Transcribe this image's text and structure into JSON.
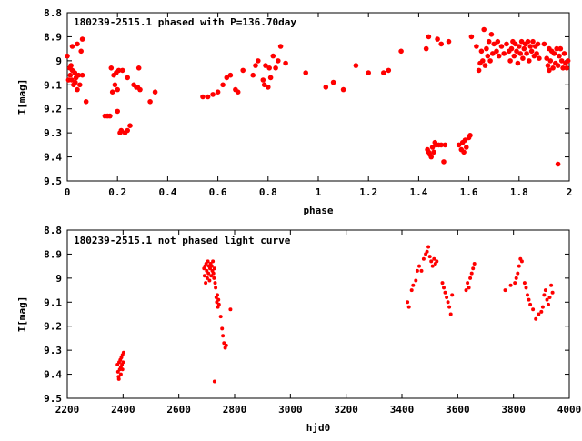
{
  "chart_data": [
    {
      "type": "scatter",
      "title": "180239-2515.1 phased with P=136.70day",
      "xlabel": "phase",
      "ylabel": "I[mag]",
      "xlim": [
        0,
        2
      ],
      "ylim": [
        9.5,
        8.8
      ],
      "y_inverted": true,
      "grid": false,
      "legend": "none",
      "marker_color": "#ff0000",
      "xticks": [
        "0",
        "0.2",
        "0.4",
        "0.6",
        "0.8",
        "1",
        "1.2",
        "1.4",
        "1.6",
        "1.8",
        "2"
      ],
      "xtick_values": [
        0,
        0.2,
        0.4,
        0.6,
        0.8,
        1,
        1.2,
        1.4,
        1.6,
        1.8,
        2
      ],
      "yticks": [
        "8.8",
        "8.9",
        "9",
        "9.1",
        "9.2",
        "9.3",
        "9.4",
        "9.5"
      ],
      "ytick_values": [
        8.8,
        8.9,
        9,
        9.1,
        9.2,
        9.3,
        9.4,
        9.5
      ],
      "points": [
        [
          0.0,
          8.98
        ],
        [
          0.005,
          9.08
        ],
        [
          0.01,
          9.03
        ],
        [
          0.012,
          9.06
        ],
        [
          0.015,
          9.02
        ],
        [
          0.018,
          9.08
        ],
        [
          0.02,
          9.04
        ],
        [
          0.025,
          9.1
        ],
        [
          0.03,
          9.05
        ],
        [
          0.032,
          9.09
        ],
        [
          0.035,
          9.07
        ],
        [
          0.04,
          9.12
        ],
        [
          0.045,
          9.06
        ],
        [
          0.05,
          9.1
        ],
        [
          0.055,
          8.96
        ],
        [
          0.06,
          9.06
        ],
        [
          0.02,
          8.94
        ],
        [
          0.04,
          8.93
        ],
        [
          0.06,
          8.91
        ],
        [
          0.075,
          9.17
        ],
        [
          0.15,
          9.23
        ],
        [
          0.16,
          9.23
        ],
        [
          0.17,
          9.23
        ],
        [
          0.175,
          9.03
        ],
        [
          0.18,
          9.13
        ],
        [
          0.185,
          9.06
        ],
        [
          0.19,
          9.1
        ],
        [
          0.195,
          9.05
        ],
        [
          0.2,
          9.12
        ],
        [
          0.2,
          9.21
        ],
        [
          0.205,
          9.04
        ],
        [
          0.21,
          9.3
        ],
        [
          0.215,
          9.29
        ],
        [
          0.22,
          9.04
        ],
        [
          0.23,
          9.3
        ],
        [
          0.24,
          9.29
        ],
        [
          0.24,
          9.07
        ],
        [
          0.25,
          9.27
        ],
        [
          0.265,
          9.1
        ],
        [
          0.275,
          9.11
        ],
        [
          0.28,
          9.11
        ],
        [
          0.285,
          9.03
        ],
        [
          0.29,
          9.12
        ],
        [
          0.33,
          9.17
        ],
        [
          0.35,
          9.13
        ],
        [
          0.54,
          9.15
        ],
        [
          0.56,
          9.15
        ],
        [
          0.58,
          9.14
        ],
        [
          0.6,
          9.13
        ],
        [
          0.62,
          9.1
        ],
        [
          0.635,
          9.07
        ],
        [
          0.65,
          9.06
        ],
        [
          0.67,
          9.12
        ],
        [
          0.68,
          9.13
        ],
        [
          0.7,
          9.04
        ],
        [
          0.74,
          9.06
        ],
        [
          0.75,
          9.02
        ],
        [
          0.76,
          9.0
        ],
        [
          0.78,
          9.08
        ],
        [
          0.785,
          9.1
        ],
        [
          0.79,
          9.02
        ],
        [
          0.8,
          9.11
        ],
        [
          0.805,
          9.03
        ],
        [
          0.81,
          9.07
        ],
        [
          0.82,
          8.98
        ],
        [
          0.83,
          9.03
        ],
        [
          0.84,
          9.0
        ],
        [
          0.85,
          8.94
        ],
        [
          0.87,
          9.01
        ],
        [
          0.95,
          9.05
        ],
        [
          1.03,
          9.11
        ],
        [
          1.06,
          9.09
        ],
        [
          1.1,
          9.12
        ],
        [
          1.15,
          9.02
        ],
        [
          1.2,
          9.05
        ],
        [
          1.26,
          9.05
        ],
        [
          1.28,
          9.04
        ],
        [
          1.33,
          8.96
        ],
        [
          1.43,
          8.95
        ],
        [
          1.44,
          8.9
        ],
        [
          1.435,
          9.37
        ],
        [
          1.44,
          9.38
        ],
        [
          1.445,
          9.39
        ],
        [
          1.45,
          9.4
        ],
        [
          1.455,
          9.36
        ],
        [
          1.46,
          9.38
        ],
        [
          1.465,
          9.34
        ],
        [
          1.47,
          9.35
        ],
        [
          1.475,
          8.91
        ],
        [
          1.48,
          9.35
        ],
        [
          1.49,
          9.35
        ],
        [
          1.49,
          8.93
        ],
        [
          1.5,
          9.42
        ],
        [
          1.505,
          9.35
        ],
        [
          1.52,
          8.92
        ],
        [
          1.56,
          9.35
        ],
        [
          1.57,
          9.37
        ],
        [
          1.575,
          9.34
        ],
        [
          1.58,
          9.38
        ],
        [
          1.585,
          9.33
        ],
        [
          1.59,
          9.36
        ],
        [
          1.6,
          9.32
        ],
        [
          1.605,
          9.31
        ],
        [
          1.61,
          8.9
        ],
        [
          1.63,
          8.94
        ],
        [
          1.64,
          9.04
        ],
        [
          1.645,
          9.01
        ],
        [
          1.65,
          8.96
        ],
        [
          1.655,
          9.0
        ],
        [
          1.66,
          8.87
        ],
        [
          1.665,
          9.02
        ],
        [
          1.67,
          8.95
        ],
        [
          1.675,
          8.98
        ],
        [
          1.68,
          8.92
        ],
        [
          1.685,
          9.0
        ],
        [
          1.69,
          8.89
        ],
        [
          1.695,
          8.97
        ],
        [
          1.7,
          8.93
        ],
        [
          1.71,
          8.96
        ],
        [
          1.715,
          8.92
        ],
        [
          1.72,
          8.98
        ],
        [
          1.73,
          8.94
        ],
        [
          1.74,
          8.97
        ],
        [
          1.75,
          8.93
        ],
        [
          1.76,
          8.96
        ],
        [
          1.765,
          9.0
        ],
        [
          1.77,
          8.95
        ],
        [
          1.775,
          8.92
        ],
        [
          1.78,
          8.98
        ],
        [
          1.785,
          8.93
        ],
        [
          1.79,
          8.96
        ],
        [
          1.795,
          9.01
        ],
        [
          1.8,
          8.94
        ],
        [
          1.805,
          8.97
        ],
        [
          1.81,
          8.92
        ],
        [
          1.815,
          8.99
        ],
        [
          1.82,
          8.95
        ],
        [
          1.825,
          8.93
        ],
        [
          1.83,
          8.97
        ],
        [
          1.835,
          8.92
        ],
        [
          1.84,
          9.0
        ],
        [
          1.845,
          8.94
        ],
        [
          1.85,
          8.96
        ],
        [
          1.855,
          8.92
        ],
        [
          1.86,
          8.98
        ],
        [
          1.865,
          8.94
        ],
        [
          1.87,
          8.97
        ],
        [
          1.875,
          8.93
        ],
        [
          1.88,
          8.99
        ],
        [
          1.9,
          8.93
        ],
        [
          1.91,
          8.99
        ],
        [
          1.915,
          9.02
        ],
        [
          1.92,
          8.95
        ],
        [
          1.925,
          9.0
        ],
        [
          1.93,
          8.96
        ],
        [
          1.935,
          9.03
        ],
        [
          1.94,
          8.97
        ],
        [
          1.945,
          9.01
        ],
        [
          1.95,
          8.95
        ],
        [
          1.955,
          9.02
        ],
        [
          1.96,
          8.98
        ],
        [
          1.965,
          8.95
        ],
        [
          1.97,
          9.0
        ],
        [
          1.975,
          9.03
        ],
        [
          1.98,
          8.97
        ],
        [
          1.985,
          9.01
        ],
        [
          1.99,
          9.03
        ],
        [
          1.995,
          9.0
        ],
        [
          1.955,
          9.43
        ],
        [
          1.92,
          9.04
        ]
      ]
    },
    {
      "type": "scatter",
      "title": "180239-2515.1 not phased light curve",
      "xlabel": "hjd0",
      "ylabel": "I[mag]",
      "xlim": [
        2200,
        4000
      ],
      "ylim": [
        9.5,
        8.8
      ],
      "y_inverted": true,
      "grid": false,
      "legend": "none",
      "marker_color": "#ff0000",
      "xticks": [
        "2200",
        "2400",
        "2600",
        "2800",
        "3000",
        "3200",
        "3400",
        "3600",
        "3800",
        "4000"
      ],
      "xtick_values": [
        2200,
        2400,
        2600,
        2800,
        3000,
        3200,
        3400,
        3600,
        3800,
        4000
      ],
      "yticks": [
        "8.8",
        "8.9",
        "9",
        "9.1",
        "9.2",
        "9.3",
        "9.4",
        "9.5"
      ],
      "ytick_values": [
        8.8,
        8.9,
        9,
        9.1,
        9.2,
        9.3,
        9.4,
        9.5
      ],
      "points": [
        [
          2380,
          9.36
        ],
        [
          2382,
          9.39
        ],
        [
          2384,
          9.41
        ],
        [
          2386,
          9.35
        ],
        [
          2388,
          9.38
        ],
        [
          2390,
          9.34
        ],
        [
          2392,
          9.37
        ],
        [
          2394,
          9.33
        ],
        [
          2396,
          9.36
        ],
        [
          2398,
          9.32
        ],
        [
          2400,
          9.35
        ],
        [
          2402,
          9.31
        ],
        [
          2385,
          9.42
        ],
        [
          2392,
          9.4
        ],
        [
          2398,
          9.38
        ],
        [
          2690,
          8.96
        ],
        [
          2692,
          8.99
        ],
        [
          2694,
          8.95
        ],
        [
          2696,
          9.02
        ],
        [
          2698,
          8.94
        ],
        [
          2700,
          8.97
        ],
        [
          2702,
          9.0
        ],
        [
          2704,
          8.93
        ],
        [
          2706,
          8.98
        ],
        [
          2708,
          8.95
        ],
        [
          2710,
          9.01
        ],
        [
          2712,
          8.96
        ],
        [
          2714,
          8.94
        ],
        [
          2716,
          8.99
        ],
        [
          2718,
          8.95
        ],
        [
          2720,
          8.97
        ],
        [
          2722,
          8.93
        ],
        [
          2724,
          8.98
        ],
        [
          2726,
          9.0
        ],
        [
          2728,
          8.96
        ],
        [
          2730,
          9.02
        ],
        [
          2732,
          9.04
        ],
        [
          2734,
          9.08
        ],
        [
          2736,
          9.1
        ],
        [
          2738,
          9.07
        ],
        [
          2740,
          9.12
        ],
        [
          2742,
          9.09
        ],
        [
          2744,
          9.11
        ],
        [
          2750,
          9.16
        ],
        [
          2755,
          9.21
        ],
        [
          2758,
          9.24
        ],
        [
          2762,
          9.27
        ],
        [
          2766,
          9.29
        ],
        [
          2770,
          9.28
        ],
        [
          2785,
          9.13
        ],
        [
          2728,
          9.43
        ],
        [
          3420,
          9.1
        ],
        [
          3425,
          9.12
        ],
        [
          3435,
          9.05
        ],
        [
          3440,
          9.03
        ],
        [
          3450,
          9.01
        ],
        [
          3455,
          8.97
        ],
        [
          3462,
          8.95
        ],
        [
          3470,
          8.97
        ],
        [
          3478,
          8.92
        ],
        [
          3485,
          8.9
        ],
        [
          3490,
          8.89
        ],
        [
          3495,
          8.87
        ],
        [
          3500,
          8.91
        ],
        [
          3505,
          8.93
        ],
        [
          3510,
          8.95
        ],
        [
          3515,
          8.92
        ],
        [
          3520,
          8.94
        ],
        [
          3525,
          8.93
        ],
        [
          3545,
          9.02
        ],
        [
          3550,
          9.04
        ],
        [
          3555,
          9.06
        ],
        [
          3560,
          9.08
        ],
        [
          3565,
          9.1
        ],
        [
          3570,
          9.12
        ],
        [
          3575,
          9.15
        ],
        [
          3580,
          9.07
        ],
        [
          3630,
          9.05
        ],
        [
          3635,
          9.02
        ],
        [
          3640,
          9.04
        ],
        [
          3645,
          9.0
        ],
        [
          3650,
          8.98
        ],
        [
          3655,
          8.96
        ],
        [
          3660,
          8.94
        ],
        [
          3770,
          9.05
        ],
        [
          3790,
          9.03
        ],
        [
          3805,
          9.02
        ],
        [
          3810,
          9.0
        ],
        [
          3815,
          8.98
        ],
        [
          3820,
          8.95
        ],
        [
          3825,
          8.92
        ],
        [
          3830,
          8.93
        ],
        [
          3840,
          9.02
        ],
        [
          3845,
          9.04
        ],
        [
          3850,
          9.07
        ],
        [
          3855,
          9.09
        ],
        [
          3860,
          9.11
        ],
        [
          3870,
          9.13
        ],
        [
          3880,
          9.17
        ],
        [
          3890,
          9.15
        ],
        [
          3900,
          9.14
        ],
        [
          3905,
          9.12
        ],
        [
          3910,
          9.07
        ],
        [
          3915,
          9.05
        ],
        [
          3920,
          9.09
        ],
        [
          3925,
          9.11
        ],
        [
          3930,
          9.08
        ],
        [
          3935,
          9.03
        ],
        [
          3940,
          9.06
        ]
      ]
    }
  ]
}
